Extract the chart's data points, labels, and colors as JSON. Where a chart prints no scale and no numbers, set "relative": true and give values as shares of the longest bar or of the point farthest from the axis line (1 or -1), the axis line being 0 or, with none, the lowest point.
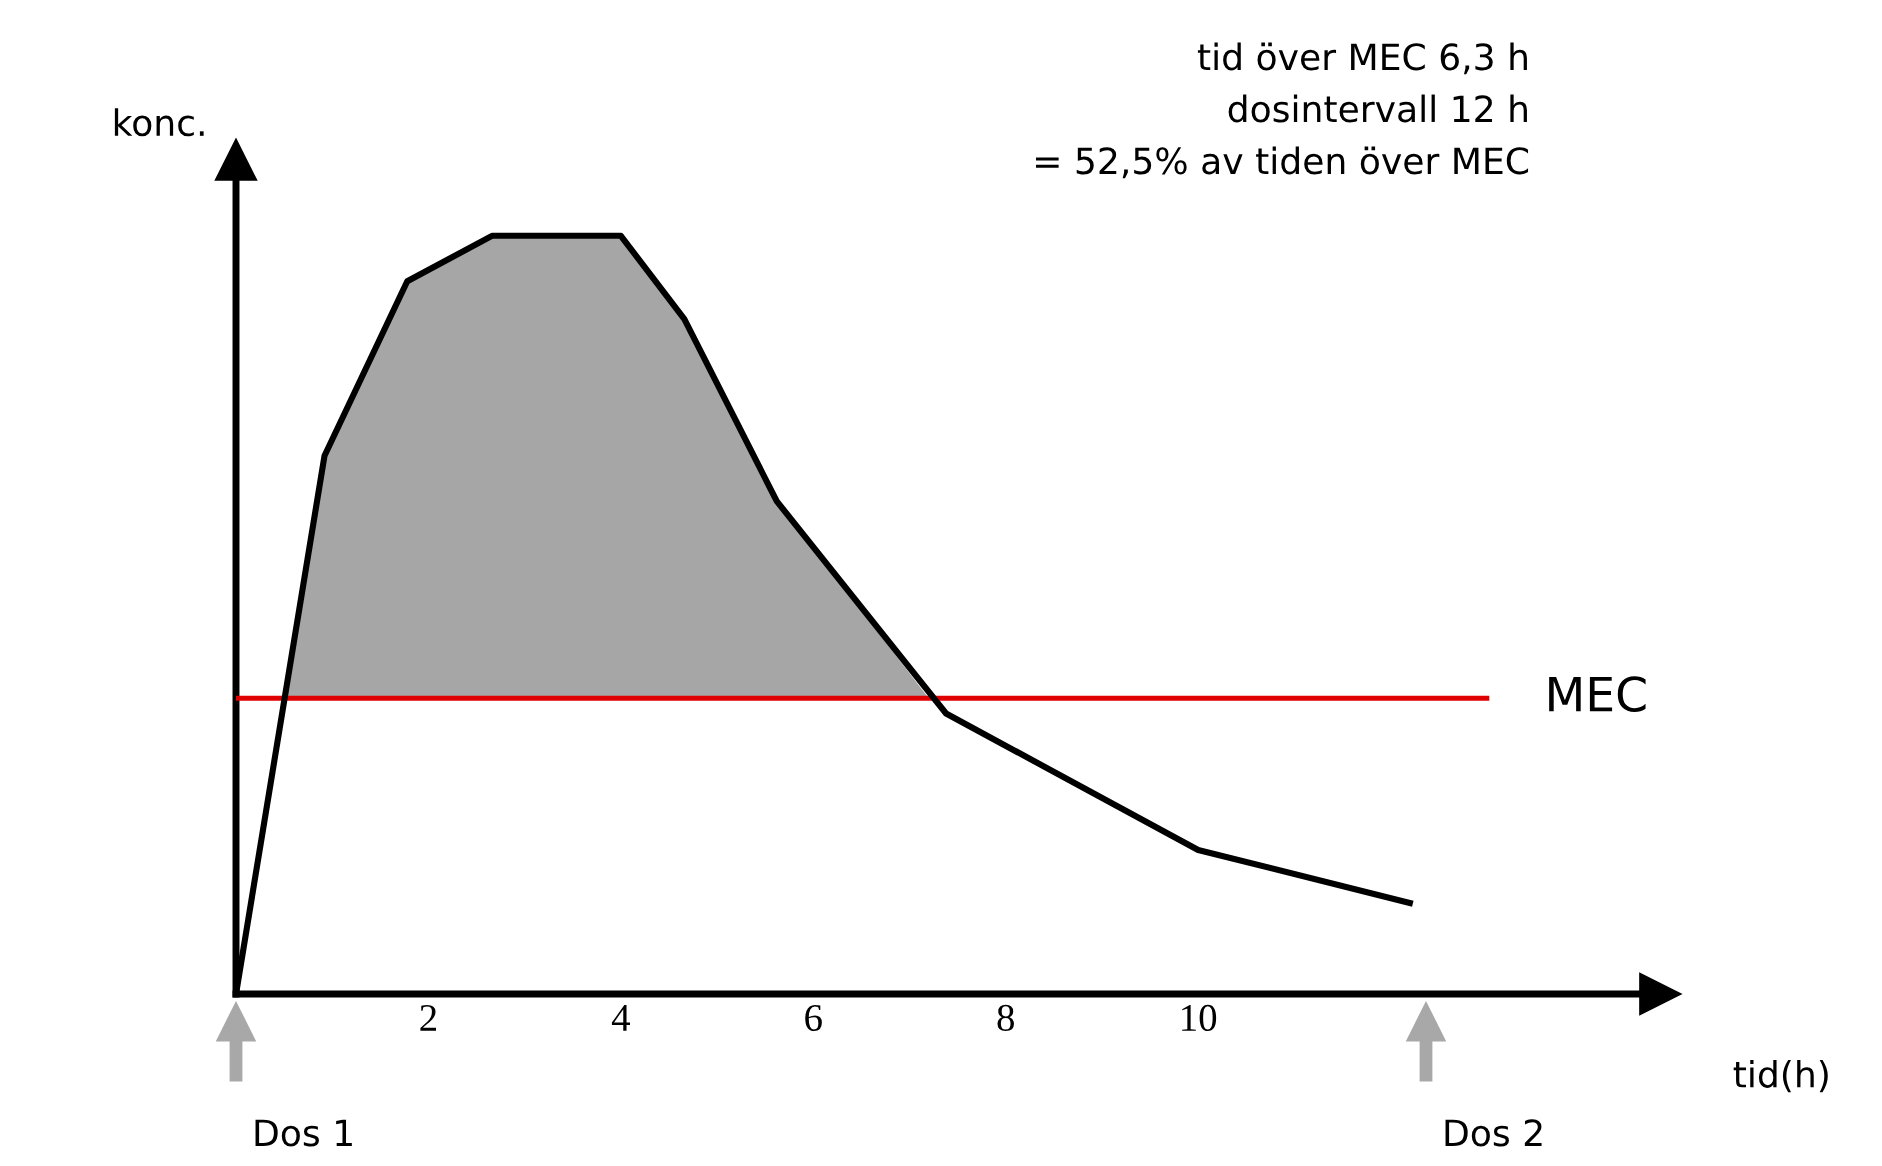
{
  "chart_data": {
    "type": "line",
    "relative": true,
    "xlabel": "tid(h)",
    "ylabel": "konc.",
    "xlim": [
      0,
      14.8
    ],
    "xticks": [
      2,
      4,
      6,
      8,
      10
    ],
    "tick_labels": "x",
    "grid": false,
    "marker": "none",
    "line_style": "solid",
    "series": [
      {
        "color": "#000000",
        "x": [
          0,
          0.92,
          1.78,
          2.66,
          4.0,
          4.66,
          5.62,
          7.38,
          10.0,
          12.2
        ],
        "values": [
          0,
          0.71,
          0.94,
          1,
          1,
          0.89,
          0.65,
          0.37,
          0.19,
          0.12
        ]
      },
      {
        "type": "area",
        "color": "#a6a6a6",
        "x": [
          0.5,
          0.92,
          1.78,
          2.66,
          4.0,
          4.66,
          5.62,
          7.2
        ],
        "values": [
          0.39,
          0.71,
          0.94,
          1,
          1,
          0.89,
          0.65,
          0.39
        ]
      }
    ],
    "ref_lines": [
      {
        "axis": "y",
        "value": 0.39,
        "label": "MEC",
        "color": "#e00000",
        "line_style": "solid"
      }
    ],
    "annotations": [
      "tid över MEC 6,3 h",
      "dosintervall 12 h",
      "= 52,5% av tiden över MEC",
      "Dos 1",
      "Dos 2"
    ]
  }
}
